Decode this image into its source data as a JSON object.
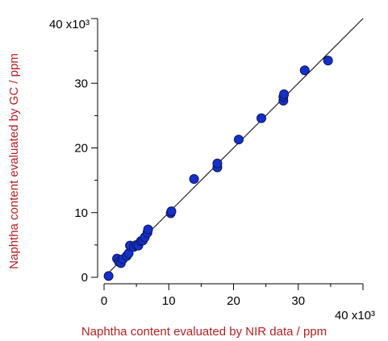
{
  "chart_data": {
    "type": "scatter",
    "xlabel": "Naphtha content evaluated by NIR data / ppm",
    "ylabel": "Naphtha content evaluated by GC / ppm",
    "xlim": [
      0,
      40000
    ],
    "ylim": [
      0,
      40000
    ],
    "x_ticks": [
      0,
      10000,
      20000,
      30000,
      40000
    ],
    "x_tick_labels": [
      "0",
      "10",
      "20",
      "30",
      "40 x10³"
    ],
    "y_ticks": [
      0,
      10000,
      20000,
      30000,
      40000
    ],
    "y_tick_labels": [
      "0",
      "10",
      "20",
      "30",
      "40 x10³"
    ],
    "grid": false,
    "reference_line": {
      "from": [
        0,
        0
      ],
      "to": [
        40000,
        40000
      ]
    },
    "colors": {
      "point": "#1530c8",
      "point_edge": "#0a1560",
      "label": "#b22222",
      "axis": "#000000"
    },
    "points": [
      [
        700,
        200
      ],
      [
        2000,
        2900
      ],
      [
        2300,
        2400
      ],
      [
        2600,
        2200
      ],
      [
        2900,
        2800
      ],
      [
        3500,
        3300
      ],
      [
        3800,
        3700
      ],
      [
        4000,
        4900
      ],
      [
        4600,
        4700
      ],
      [
        5000,
        5000
      ],
      [
        5300,
        4900
      ],
      [
        5700,
        5600
      ],
      [
        6000,
        5700
      ],
      [
        6300,
        6200
      ],
      [
        6700,
        6900
      ],
      [
        6800,
        7400
      ],
      [
        10300,
        9900
      ],
      [
        10400,
        10200
      ],
      [
        13900,
        15200
      ],
      [
        17500,
        17000
      ],
      [
        17500,
        17600
      ],
      [
        20800,
        21300
      ],
      [
        24300,
        24600
      ],
      [
        27700,
        27300
      ],
      [
        27700,
        27900
      ],
      [
        27800,
        28300
      ],
      [
        31000,
        32000
      ],
      [
        34600,
        33500
      ]
    ]
  }
}
